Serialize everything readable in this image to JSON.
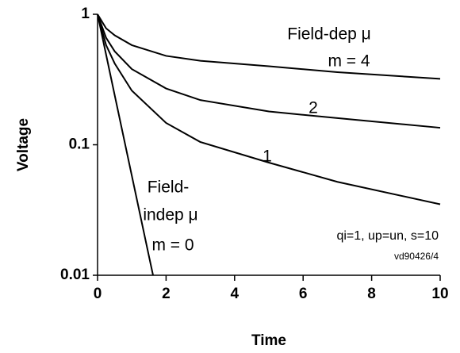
{
  "chart_data": {
    "type": "line",
    "log_y": true,
    "xlabel": "Time",
    "ylabel": "Voltage",
    "xlim": [
      0,
      10
    ],
    "xticks": [
      0,
      2,
      4,
      6,
      8,
      10
    ],
    "ylim": [
      0.01,
      1
    ],
    "yticks": [
      0.01,
      0.1,
      1
    ],
    "series": [
      {
        "name": "m = 0",
        "color": "#000000",
        "x": [
          0,
          0.5,
          1,
          1.5,
          1.62
        ],
        "values": [
          1,
          0.24,
          0.058,
          0.014,
          0.01
        ]
      },
      {
        "name": "1",
        "color": "#000000",
        "x": [
          0,
          0.25,
          0.5,
          1,
          2,
          3,
          5,
          7,
          10
        ],
        "values": [
          1,
          0.58,
          0.42,
          0.26,
          0.147,
          0.105,
          0.073,
          0.052,
          0.035
        ]
      },
      {
        "name": "2",
        "color": "#000000",
        "x": [
          0,
          0.25,
          0.5,
          1,
          2,
          3,
          5,
          7,
          10
        ],
        "values": [
          1,
          0.66,
          0.52,
          0.38,
          0.27,
          0.22,
          0.18,
          0.16,
          0.135
        ]
      },
      {
        "name": "m = 4",
        "color": "#000000",
        "x": [
          0,
          0.25,
          0.5,
          1,
          2,
          3,
          5,
          7,
          10
        ],
        "values": [
          1,
          0.78,
          0.69,
          0.58,
          0.48,
          0.44,
          0.4,
          0.36,
          0.32
        ]
      }
    ],
    "annotations": [
      "Field-dep μ",
      "m = 4",
      "2",
      "1",
      "Field-",
      "indep μ",
      "m = 0",
      "qi=1, up=un, s=10",
      "vd90426/4"
    ]
  }
}
